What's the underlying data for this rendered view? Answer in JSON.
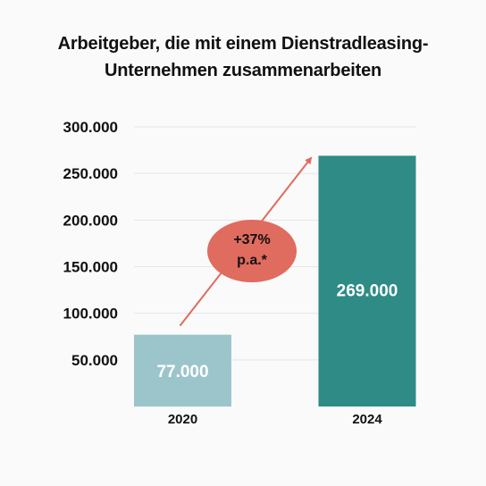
{
  "chart_data": {
    "type": "bar",
    "title_lines": [
      "Arbeitgeber, die mit einem Dienstradleasing-",
      "Unternehmen zusammenarbeiten"
    ],
    "categories": [
      "2020",
      "2024"
    ],
    "values": [
      77000,
      269000
    ],
    "value_labels": [
      "77.000",
      "269.000"
    ],
    "ylim": [
      0,
      300000
    ],
    "yticks": [
      {
        "value": 50000,
        "label": "50.000"
      },
      {
        "value": 100000,
        "label": "100.000"
      },
      {
        "value": 150000,
        "label": "150.000"
      },
      {
        "value": 200000,
        "label": "200.000"
      },
      {
        "value": 250000,
        "label": "250.000"
      },
      {
        "value": 300000,
        "label": "300.000"
      }
    ],
    "grid": true,
    "colors": {
      "bar_2020": "#9cc5cb",
      "bar_2024": "#2e8b86",
      "arrow": "#e06b5f",
      "badge": "#e06b5f",
      "grid": "#e6e6e6"
    },
    "annotation": {
      "lines": [
        "+37%",
        "p.a.*"
      ]
    }
  }
}
